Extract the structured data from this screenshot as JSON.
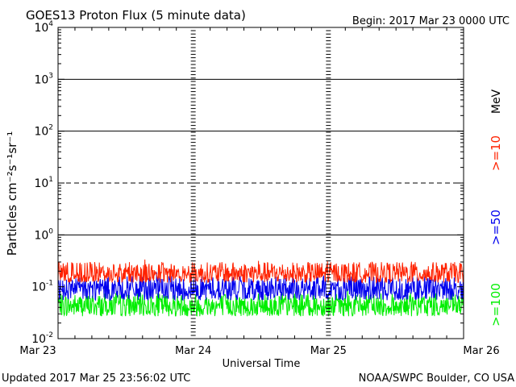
{
  "header": {
    "title": "GOES13 Proton Flux (5 minute data)",
    "begin": "Begin: 2017 Mar 23 0000 UTC"
  },
  "footer": {
    "updated": "Updated 2017 Mar 25 23:56:02 UTC",
    "source": "NOAA/SWPC Boulder, CO USA"
  },
  "chart_data": {
    "type": "line",
    "title": "GOES13 Proton Flux (5 minute data)",
    "xlabel": "Universal Time",
    "ylabel": "Particles cm⁻²s⁻¹sr⁻¹",
    "yscale": "log",
    "ylim": [
      0.01,
      10000
    ],
    "xlim": [
      "Mar 23",
      "Mar 26"
    ],
    "x_ticks": [
      "Mar 23",
      "Mar 24",
      "Mar 25",
      "Mar 26"
    ],
    "y_ticks": [
      {
        "base": "10",
        "exp": "-2",
        "value": 0.01
      },
      {
        "base": "10",
        "exp": "-1",
        "value": 0.1
      },
      {
        "base": "10",
        "exp": "0",
        "value": 1
      },
      {
        "base": "10",
        "exp": "1",
        "value": 10
      },
      {
        "base": "10",
        "exp": "2",
        "value": 100
      },
      {
        "base": "10",
        "exp": "3",
        "value": 1000
      },
      {
        "base": "10",
        "exp": "4",
        "value": 10000
      }
    ],
    "threshold_lines": [
      {
        "value": 1,
        "style": "solid"
      },
      {
        "value": 10,
        "style": "dashed"
      },
      {
        "value": 100,
        "style": "solid"
      },
      {
        "value": 1000,
        "style": "solid"
      }
    ],
    "legend_units": "MeV",
    "series": [
      {
        "name": ">=10",
        "color": "#ff2200",
        "typical_range": [
          0.12,
          0.3
        ]
      },
      {
        "name": ">=50",
        "color": "#0000ee",
        "typical_range": [
          0.055,
          0.16
        ]
      },
      {
        "name": ">=100",
        "color": "#00ee00",
        "typical_range": [
          0.027,
          0.075
        ]
      }
    ],
    "grid": false,
    "legend_position": "right"
  }
}
